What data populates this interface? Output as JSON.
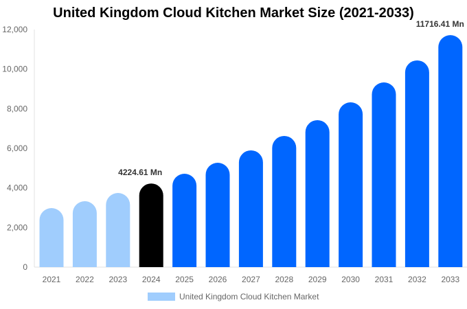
{
  "chart_data": {
    "type": "bar",
    "title": "United Kingdom Cloud Kitchen Market Size (2021-2033)",
    "categories": [
      "2021",
      "2022",
      "2023",
      "2024",
      "2025",
      "2026",
      "2027",
      "2028",
      "2029",
      "2030",
      "2031",
      "2032",
      "2033"
    ],
    "series": [
      {
        "name": "United Kingdom Cloud Kitchen Market",
        "values": [
          2983,
          3330,
          3746,
          4224.61,
          4717,
          5272,
          5897,
          6625,
          7423,
          8324,
          9330,
          10440,
          11716.41
        ]
      }
    ],
    "data_labels": {
      "3": "4224.61 Mn",
      "12": "11716.41 Mn"
    },
    "ylim": [
      0,
      12000
    ],
    "yticks": [
      0,
      2000,
      4000,
      6000,
      8000,
      10000,
      12000
    ],
    "ytick_labels": [
      "0",
      "2,000",
      "4,000",
      "6,000",
      "8,000",
      "10,000",
      "12,000"
    ],
    "xlabel": "",
    "ylabel": "",
    "grid": false,
    "legend_position": "bottom",
    "colors": {
      "historic": "#a0cdfd",
      "current": "#000000",
      "forecast": "#0066ff",
      "legend": "#a0cdfd"
    }
  }
}
